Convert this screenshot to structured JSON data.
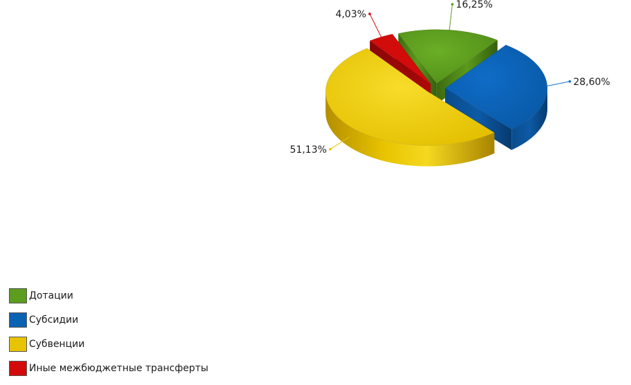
{
  "chart_data": {
    "type": "pie",
    "title": "",
    "slices": [
      {
        "label": "Дотации",
        "value": 16.25,
        "value_text": "16,25%",
        "color": "#5c9c1e"
      },
      {
        "label": "Субсидии",
        "value": 28.6,
        "value_text": "28,60%",
        "color": "#0a62b4"
      },
      {
        "label": "Субвенции",
        "value": 51.13,
        "value_text": "51,13%",
        "color": "#e8c300"
      },
      {
        "label": "Иные межбюджетные трансферты",
        "value": 4.03,
        "value_text": "4,03%",
        "color": "#d40a0a"
      }
    ],
    "legend_position": "bottom-left",
    "exploded": true,
    "three_d": true
  }
}
